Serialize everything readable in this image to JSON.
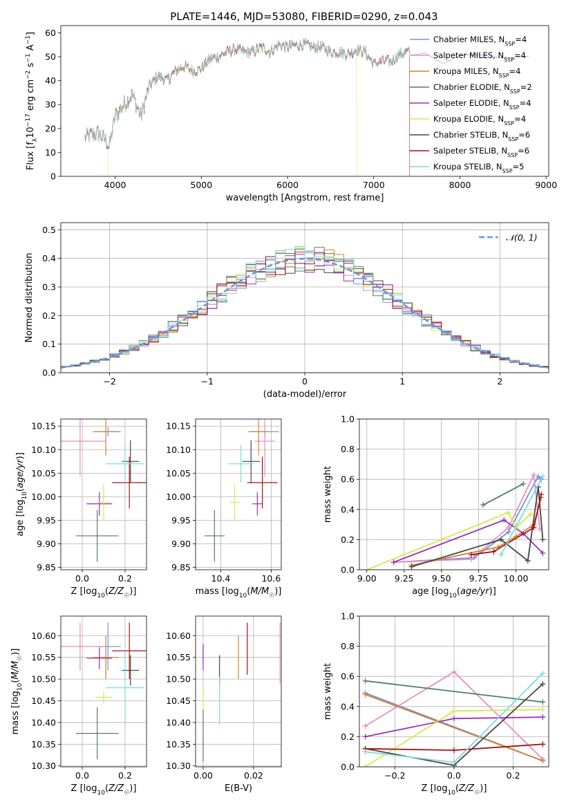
{
  "figure_title": "PLATE=1446, MJD=53080, FIBERID=0290, z=0.043",
  "colors": {
    "Chabrier MILES": "#6e93d9",
    "Salpeter MILES": "#e58fc3",
    "Kroupa MILES": "#d9802a",
    "Chabrier ELODIE": "#4f7f57",
    "Salpeter ELODIE": "#9a2fb5",
    "Kroupa ELODIE": "#d4e84d",
    "Chabrier STELIB": "#454545",
    "Salpeter STELIB": "#a31010",
    "Kroupa STELIB": "#7fd9de"
  },
  "chart_data": [
    {
      "id": "spectrum",
      "type": "line",
      "title": "PLATE=1446, MJD=53080, FIBERID=0290, z=0.043",
      "xlabel": "wavelength [Angstrom, rest frame]",
      "ylabel": "Flux [f_λ 10^-17 erg cm^-2 s^-1 A^-1]",
      "xlim": [
        3370,
        9030
      ],
      "ylim": [
        0,
        63
      ],
      "xticks": [
        4000,
        5000,
        6000,
        7000,
        8000,
        9000
      ],
      "yticks": [
        0,
        10,
        20,
        30,
        40,
        50,
        60
      ],
      "grid": false,
      "legend_position": "upper-right",
      "continuum": {
        "x": [
          3650,
          3700,
          3800,
          3900,
          3930,
          4000,
          4100,
          4200,
          4300,
          4400,
          4500,
          4600,
          4700,
          4800,
          4900,
          5000,
          5100,
          5200,
          5300,
          5400,
          5500,
          5600,
          5700,
          5800,
          5900,
          6000,
          6100,
          6200,
          6300,
          6400,
          6500,
          6600,
          6700,
          6800,
          6900,
          7000,
          7100,
          7200,
          7300,
          7400,
          7420
        ],
        "y": [
          16,
          17,
          18,
          15,
          12,
          25,
          30,
          34,
          25,
          38,
          42,
          40,
          44,
          46,
          44,
          45,
          49,
          50,
          52,
          53,
          52,
          52,
          54,
          52,
          55,
          54,
          55,
          55,
          54,
          54,
          52,
          52,
          51,
          53,
          52,
          47,
          48,
          48,
          51,
          52,
          52
        ]
      },
      "extension_model": {
        "x": [
          7420,
          7600,
          7800,
          8000,
          8200,
          8400,
          8600,
          8800
        ],
        "y": [
          52,
          52,
          47,
          50,
          50,
          50,
          49,
          50
        ]
      },
      "series": [
        {
          "name": "Chabrier MILES, N_SSP=4",
          "label_main": "Chabrier MILES, N",
          "label_sub": "SSP",
          "label_tail": "=4"
        },
        {
          "name": "Salpeter MILES, N_SSP=4",
          "label_main": "Salpeter MILES, N",
          "label_sub": "SSP",
          "label_tail": "=4"
        },
        {
          "name": "Kroupa MILES, N_SSP=4",
          "label_main": "Kroupa MILES, N",
          "label_sub": "SSP",
          "label_tail": "=4"
        },
        {
          "name": "Chabrier ELODIE, N_SSP=2",
          "label_main": "Chabrier ELODIE, N",
          "label_sub": "SSP",
          "label_tail": "=2"
        },
        {
          "name": "Salpeter ELODIE, N_SSP=4",
          "label_main": "Salpeter ELODIE, N",
          "label_sub": "SSP",
          "label_tail": "=4"
        },
        {
          "name": "Kroupa ELODIE, N_SSP=4",
          "label_main": "Kroupa ELODIE, N",
          "label_sub": "SSP",
          "label_tail": "=4"
        },
        {
          "name": "Chabrier STELIB, N_SSP=6",
          "label_main": "Chabrier STELIB, N",
          "label_sub": "SSP",
          "label_tail": "=6"
        },
        {
          "name": "Salpeter STELIB, N_SSP=6",
          "label_main": "Salpeter STELIB, N",
          "label_sub": "SSP",
          "label_tail": "=6"
        },
        {
          "name": "Kroupa STELIB, N_SSP=5",
          "label_main": "Kroupa STELIB, N",
          "label_sub": "SSP",
          "label_tail": "=5"
        }
      ]
    },
    {
      "id": "residuals",
      "type": "histogram",
      "xlabel": "(data-model)/error",
      "ylabel": "Normed distribution",
      "xlim": [
        -2.5,
        2.5
      ],
      "ylim": [
        0,
        0.525
      ],
      "xticks": [
        -2,
        -1,
        0,
        1,
        2
      ],
      "yticks": [
        0.0,
        0.1,
        0.2,
        0.3,
        0.4,
        0.5
      ],
      "grid": true,
      "bin_width": 0.1,
      "reference_curve": {
        "name": "N(0,1)",
        "label": "𝒩(0, 1)",
        "mean": 0,
        "sigma": 1,
        "color": "#6495ed",
        "style": "dashed"
      },
      "legend_position": "upper-right"
    },
    {
      "id": "age_vs_Z",
      "type": "errorbar",
      "xlabel": "Z [log10(Z/Z☉)]",
      "ylabel": "age [log10(age/yr)]",
      "xlim": [
        -0.1,
        0.3
      ],
      "ylim": [
        9.845,
        10.165
      ],
      "xticks": [
        0.0,
        0.2
      ],
      "yticks": [
        9.85,
        9.9,
        9.95,
        10.0,
        10.05,
        10.1,
        10.15
      ],
      "grid": true,
      "points": [
        {
          "model": "Chabrier MILES",
          "x": 0.12,
          "y": 10.138,
          "xerr": 0.06,
          "yerr": 0.01
        },
        {
          "model": "Salpeter MILES",
          "x": -0.01,
          "y": 10.118,
          "xerr": 0.12,
          "yerr": 0.075
        },
        {
          "model": "Kroupa MILES",
          "x": 0.11,
          "y": 10.138,
          "xerr": 0.06,
          "yerr": 0.05
        },
        {
          "model": "Chabrier ELODIE",
          "x": 0.07,
          "y": 9.917,
          "xerr": 0.1,
          "yerr": 0.055
        },
        {
          "model": "Salpeter ELODIE",
          "x": 0.08,
          "y": 9.985,
          "xerr": 0.06,
          "yerr": 0.025
        },
        {
          "model": "Kroupa ELODIE",
          "x": 0.1,
          "y": 9.988,
          "xerr": 0.03,
          "yerr": 0.038
        },
        {
          "model": "Chabrier STELIB",
          "x": 0.225,
          "y": 10.075,
          "xerr": 0.04,
          "yerr": 0.045
        },
        {
          "model": "Salpeter STELIB",
          "x": 0.22,
          "y": 10.03,
          "xerr": 0.08,
          "yerr": 0.055
        },
        {
          "model": "Kroupa STELIB",
          "x": 0.2,
          "y": 10.07,
          "xerr": 0.09,
          "yerr": 0.04
        }
      ]
    },
    {
      "id": "age_vs_mass",
      "type": "errorbar",
      "xlabel": "mass [log10(M/M☉)]",
      "ylabel": "",
      "xlim": [
        10.3,
        10.64
      ],
      "ylim": [
        9.845,
        10.165
      ],
      "xticks": [
        10.4,
        10.6
      ],
      "yticks": [
        9.85,
        9.9,
        9.95,
        10.0,
        10.05,
        10.1,
        10.15
      ],
      "grid": true,
      "points": [
        {
          "model": "Chabrier MILES",
          "x": 10.575,
          "y": 10.138,
          "xerr": 0.055,
          "yerr": 0.01
        },
        {
          "model": "Salpeter MILES",
          "x": 10.575,
          "y": 10.118,
          "xerr": 0.04,
          "yerr": 0.075
        },
        {
          "model": "Kroupa MILES",
          "x": 10.55,
          "y": 10.138,
          "xerr": 0.04,
          "yerr": 0.05
        },
        {
          "model": "Chabrier ELODIE",
          "x": 10.375,
          "y": 9.917,
          "xerr": 0.04,
          "yerr": 0.055
        },
        {
          "model": "Salpeter ELODIE",
          "x": 10.545,
          "y": 9.985,
          "xerr": 0.02,
          "yerr": 0.025
        },
        {
          "model": "Kroupa ELODIE",
          "x": 10.455,
          "y": 9.988,
          "xerr": 0.02,
          "yerr": 0.038
        },
        {
          "model": "Chabrier STELIB",
          "x": 10.52,
          "y": 10.075,
          "xerr": 0.035,
          "yerr": 0.045
        },
        {
          "model": "Salpeter STELIB",
          "x": 10.565,
          "y": 10.03,
          "xerr": 0.06,
          "yerr": 0.055
        },
        {
          "model": "Kroupa STELIB",
          "x": 10.48,
          "y": 10.07,
          "xerr": 0.05,
          "yerr": 0.04
        }
      ]
    },
    {
      "id": "mass_weight_vs_age",
      "type": "line",
      "xlabel": "age [log10(age/yr)]",
      "ylabel": "mass weight",
      "xlim": [
        8.95,
        10.22
      ],
      "ylim": [
        0,
        1
      ],
      "xticks": [
        9.0,
        9.25,
        9.5,
        9.75,
        10.0
      ],
      "yticks": [
        0.0,
        0.2,
        0.4,
        0.6,
        0.8,
        1.0
      ],
      "grid": true,
      "series": [
        {
          "model": "Chabrier MILES",
          "x": [
            9.18,
            9.72,
            9.95,
            10.15,
            10.17
          ],
          "y": [
            0.05,
            0.08,
            0.25,
            0.62,
            0.6
          ]
        },
        {
          "model": "Salpeter MILES",
          "x": [
            9.18,
            9.7,
            9.95,
            10.12,
            10.16
          ],
          "y": [
            0.05,
            0.07,
            0.28,
            0.63,
            0.27
          ]
        },
        {
          "model": "Kroupa MILES",
          "x": [
            9.3,
            9.88,
            10.0,
            10.12,
            10.17
          ],
          "y": [
            0.03,
            0.15,
            0.22,
            0.3,
            0.48
          ]
        },
        {
          "model": "Chabrier ELODIE",
          "x": [
            9.78,
            10.05
          ],
          "y": [
            0.43,
            0.57
          ]
        },
        {
          "model": "Salpeter ELODIE",
          "x": [
            9.18,
            9.92,
            10.05,
            10.18
          ],
          "y": [
            0.05,
            0.33,
            0.24,
            0.11
          ]
        },
        {
          "model": "Kroupa ELODIE",
          "x": [
            9.0,
            9.95,
            10.0,
            10.1
          ],
          "y": [
            0.0,
            0.38,
            0.28,
            0.37
          ]
        },
        {
          "model": "Chabrier STELIB",
          "x": [
            9.3,
            9.9,
            10.08,
            10.15,
            10.18
          ],
          "y": [
            0.02,
            0.2,
            0.06,
            0.55,
            0.2
          ]
        },
        {
          "model": "Salpeter STELIB",
          "x": [
            9.7,
            9.85,
            10.12,
            10.17
          ],
          "y": [
            0.1,
            0.12,
            0.28,
            0.5
          ]
        },
        {
          "model": "Kroupa STELIB",
          "x": [
            9.9,
            10.18
          ],
          "y": [
            0.1,
            0.62
          ]
        }
      ]
    },
    {
      "id": "mass_vs_Z",
      "type": "errorbar",
      "xlabel": "Z [log10(Z/Z☉)]",
      "ylabel": "mass [log10(M/M☉)]",
      "xlim": [
        -0.1,
        0.3
      ],
      "ylim": [
        10.298,
        10.645
      ],
      "xticks": [
        0.0,
        0.2
      ],
      "yticks": [
        10.3,
        10.35,
        10.4,
        10.45,
        10.5,
        10.55,
        10.6
      ],
      "grid": true,
      "points": [
        {
          "model": "Chabrier MILES",
          "x": 0.12,
          "y": 10.575,
          "xerr": 0.06,
          "yerr": 0.055
        },
        {
          "model": "Salpeter MILES",
          "x": -0.01,
          "y": 10.575,
          "xerr": 0.12,
          "yerr": 0.055
        },
        {
          "model": "Kroupa MILES",
          "x": 0.11,
          "y": 10.55,
          "xerr": 0.06,
          "yerr": 0.05
        },
        {
          "model": "Chabrier ELODIE",
          "x": 0.07,
          "y": 10.375,
          "xerr": 0.1,
          "yerr": 0.06
        },
        {
          "model": "Salpeter ELODIE",
          "x": 0.08,
          "y": 10.548,
          "xerr": 0.06,
          "yerr": 0.025
        },
        {
          "model": "Kroupa ELODIE",
          "x": 0.1,
          "y": 10.458,
          "xerr": 0.04,
          "yerr": 0.015
        },
        {
          "model": "Chabrier STELIB",
          "x": 0.225,
          "y": 10.52,
          "xerr": 0.04,
          "yerr": 0.035
        },
        {
          "model": "Salpeter STELIB",
          "x": 0.22,
          "y": 10.565,
          "xerr": 0.08,
          "yerr": 0.065
        },
        {
          "model": "Kroupa STELIB",
          "x": 0.2,
          "y": 10.48,
          "xerr": 0.09,
          "yerr": 0.085
        }
      ]
    },
    {
      "id": "mass_vs_ebv",
      "type": "errorbar",
      "xlabel": "E(B-V)",
      "ylabel": "",
      "xlim": [
        -0.003,
        0.031
      ],
      "ylim": [
        10.298,
        10.645
      ],
      "xticks": [
        0.0,
        0.02
      ],
      "yticks": [
        10.3,
        10.35,
        10.4,
        10.45,
        10.5,
        10.55,
        10.6
      ],
      "grid": true,
      "points": [
        {
          "model": "Chabrier MILES",
          "x": 0.0,
          "y": 10.56,
          "xerr": 0,
          "yerr": 0.02
        },
        {
          "model": "Salpeter MILES",
          "x": 0.0305,
          "y": 10.56,
          "xerr": 0,
          "yerr": 0.07
        },
        {
          "model": "Kroupa MILES",
          "x": 0.014,
          "y": 10.55,
          "xerr": 0,
          "yerr": 0.05
        },
        {
          "model": "Chabrier ELODIE",
          "x": 0.0,
          "y": 10.37,
          "xerr": 0,
          "yerr": 0.06
        },
        {
          "model": "Salpeter ELODIE",
          "x": 0.0,
          "y": 10.55,
          "xerr": 0,
          "yerr": 0.03
        },
        {
          "model": "Kroupa ELODIE",
          "x": 0.0,
          "y": 10.45,
          "xerr": 0,
          "yerr": 0.02
        },
        {
          "model": "Chabrier STELIB",
          "x": 0.0065,
          "y": 10.52,
          "xerr": 0,
          "yerr": 0.035
        },
        {
          "model": "Salpeter STELIB",
          "x": 0.0175,
          "y": 10.57,
          "xerr": 0,
          "yerr": 0.06
        },
        {
          "model": "Kroupa STELIB",
          "x": 0.0065,
          "y": 10.45,
          "xerr": 0,
          "yerr": 0.055
        }
      ]
    },
    {
      "id": "mass_weight_vs_Z",
      "type": "line",
      "xlabel": "Z [log10(Z/Z☉)]",
      "ylabel": "mass weight",
      "xlim": [
        -0.32,
        0.32
      ],
      "ylim": [
        0,
        1
      ],
      "xticks": [
        -0.2,
        0.0,
        0.2
      ],
      "yticks": [
        0.0,
        0.2,
        0.4,
        0.6,
        0.8,
        1.0
      ],
      "grid": true,
      "series": [
        {
          "model": "Chabrier MILES",
          "x": [
            -0.3,
            0.3
          ],
          "y": [
            0.49,
            0.04
          ]
        },
        {
          "model": "Salpeter MILES",
          "x": [
            -0.3,
            0.0,
            0.3
          ],
          "y": [
            0.27,
            0.63,
            0.05
          ]
        },
        {
          "model": "Kroupa MILES",
          "x": [
            -0.3,
            0.3
          ],
          "y": [
            0.48,
            0.04
          ]
        },
        {
          "model": "Chabrier ELODIE",
          "x": [
            -0.3,
            0.3
          ],
          "y": [
            0.57,
            0.43
          ]
        },
        {
          "model": "Salpeter ELODIE",
          "x": [
            -0.3,
            0.0,
            0.3
          ],
          "y": [
            0.2,
            0.32,
            0.33
          ]
        },
        {
          "model": "Kroupa ELODIE",
          "x": [
            -0.3,
            0.0,
            0.3
          ],
          "y": [
            0.0,
            0.37,
            0.38
          ]
        },
        {
          "model": "Chabrier STELIB",
          "x": [
            -0.3,
            0.0,
            0.3
          ],
          "y": [
            0.12,
            0.01,
            0.55
          ]
        },
        {
          "model": "Salpeter STELIB",
          "x": [
            -0.3,
            0.0,
            0.3
          ],
          "y": [
            0.12,
            0.11,
            0.15
          ]
        },
        {
          "model": "Kroupa STELIB",
          "x": [
            -0.3,
            0.0,
            0.3
          ],
          "y": [
            0.1,
            0.03,
            0.62
          ]
        }
      ]
    }
  ]
}
